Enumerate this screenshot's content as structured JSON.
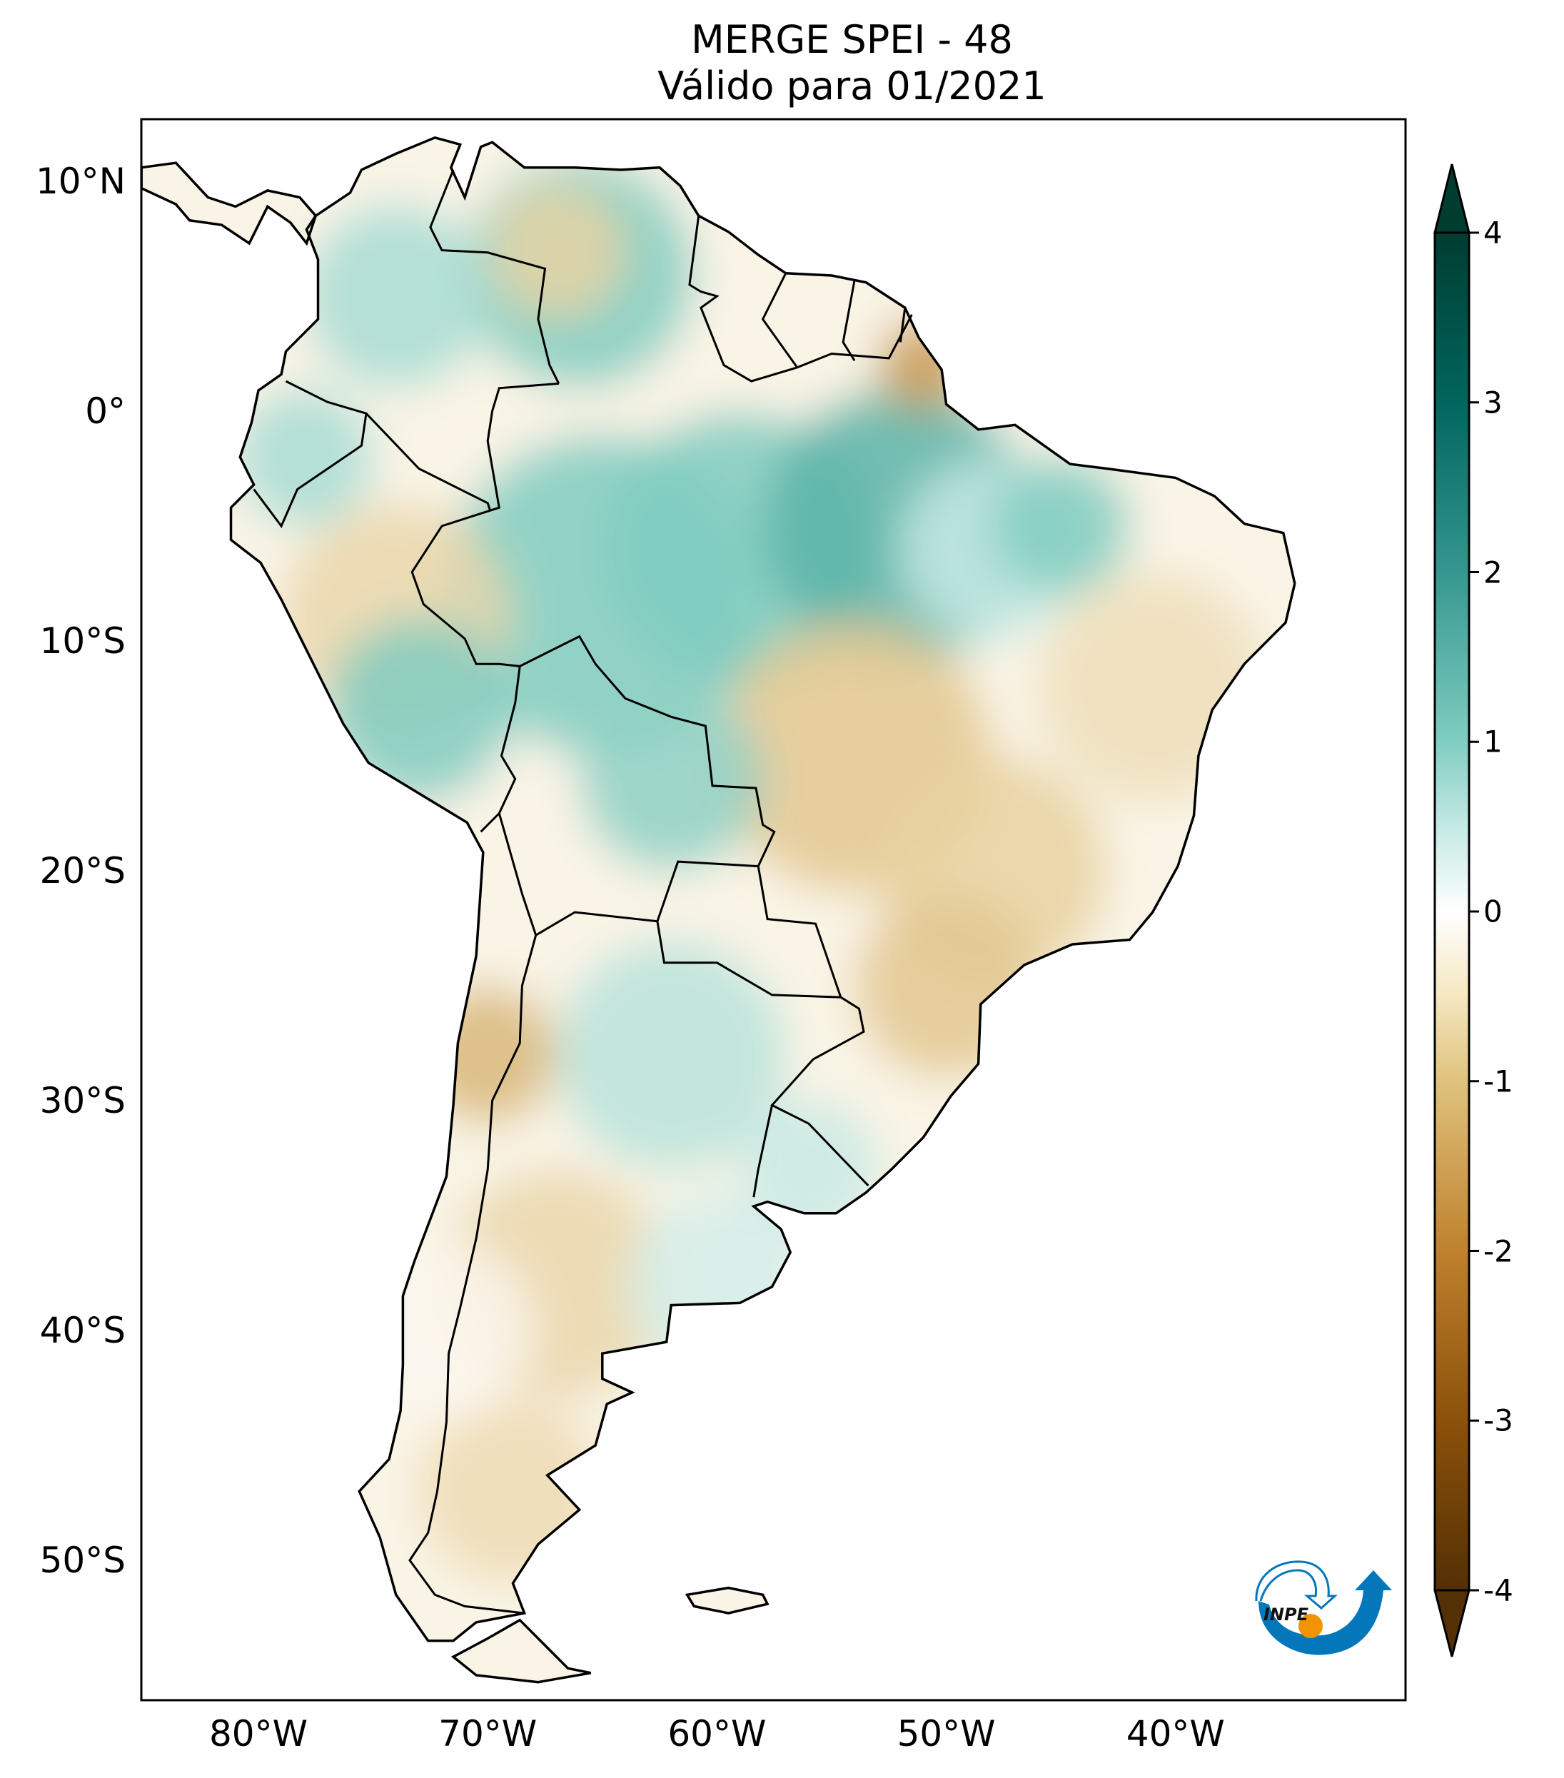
{
  "title": {
    "line1": "MERGE   SPEI - 48",
    "line2": "Válido para 01/2021"
  },
  "map": {
    "projection": "PlateCarree",
    "lon_range": [
      -85.1,
      -29.9
    ],
    "lat_range": [
      -56.1,
      12.7
    ],
    "lat_labels": [
      "10°N",
      "0°",
      "10°S",
      "20°S",
      "30°S",
      "40°S",
      "50°S"
    ],
    "lat_values": [
      10,
      0,
      -10,
      -20,
      -30,
      -40,
      -50
    ],
    "lon_labels": [
      "80°W",
      "70°W",
      "60°W",
      "50°W",
      "40°W"
    ],
    "lon_values": [
      -80,
      -70,
      -60,
      -50,
      -40
    ]
  },
  "colorbar": {
    "colormap": "BrBG",
    "range": [
      -4,
      4
    ],
    "extend": "both",
    "ticks": [
      "4",
      "3",
      "2",
      "1",
      "0",
      "-1",
      "-2",
      "-3",
      "-4"
    ],
    "tick_values": [
      4,
      3,
      2,
      1,
      0,
      -1,
      -2,
      -3,
      -4
    ],
    "colors": [
      "#003c30",
      "#01665e",
      "#35978f",
      "#80cdc1",
      "#ffffff",
      "#f6e8c3",
      "#dfc27d",
      "#bf812d",
      "#8c510a",
      "#543005"
    ]
  },
  "logo": {
    "text": "INPE",
    "blue": "#0477bb",
    "orange": "#f29400"
  }
}
